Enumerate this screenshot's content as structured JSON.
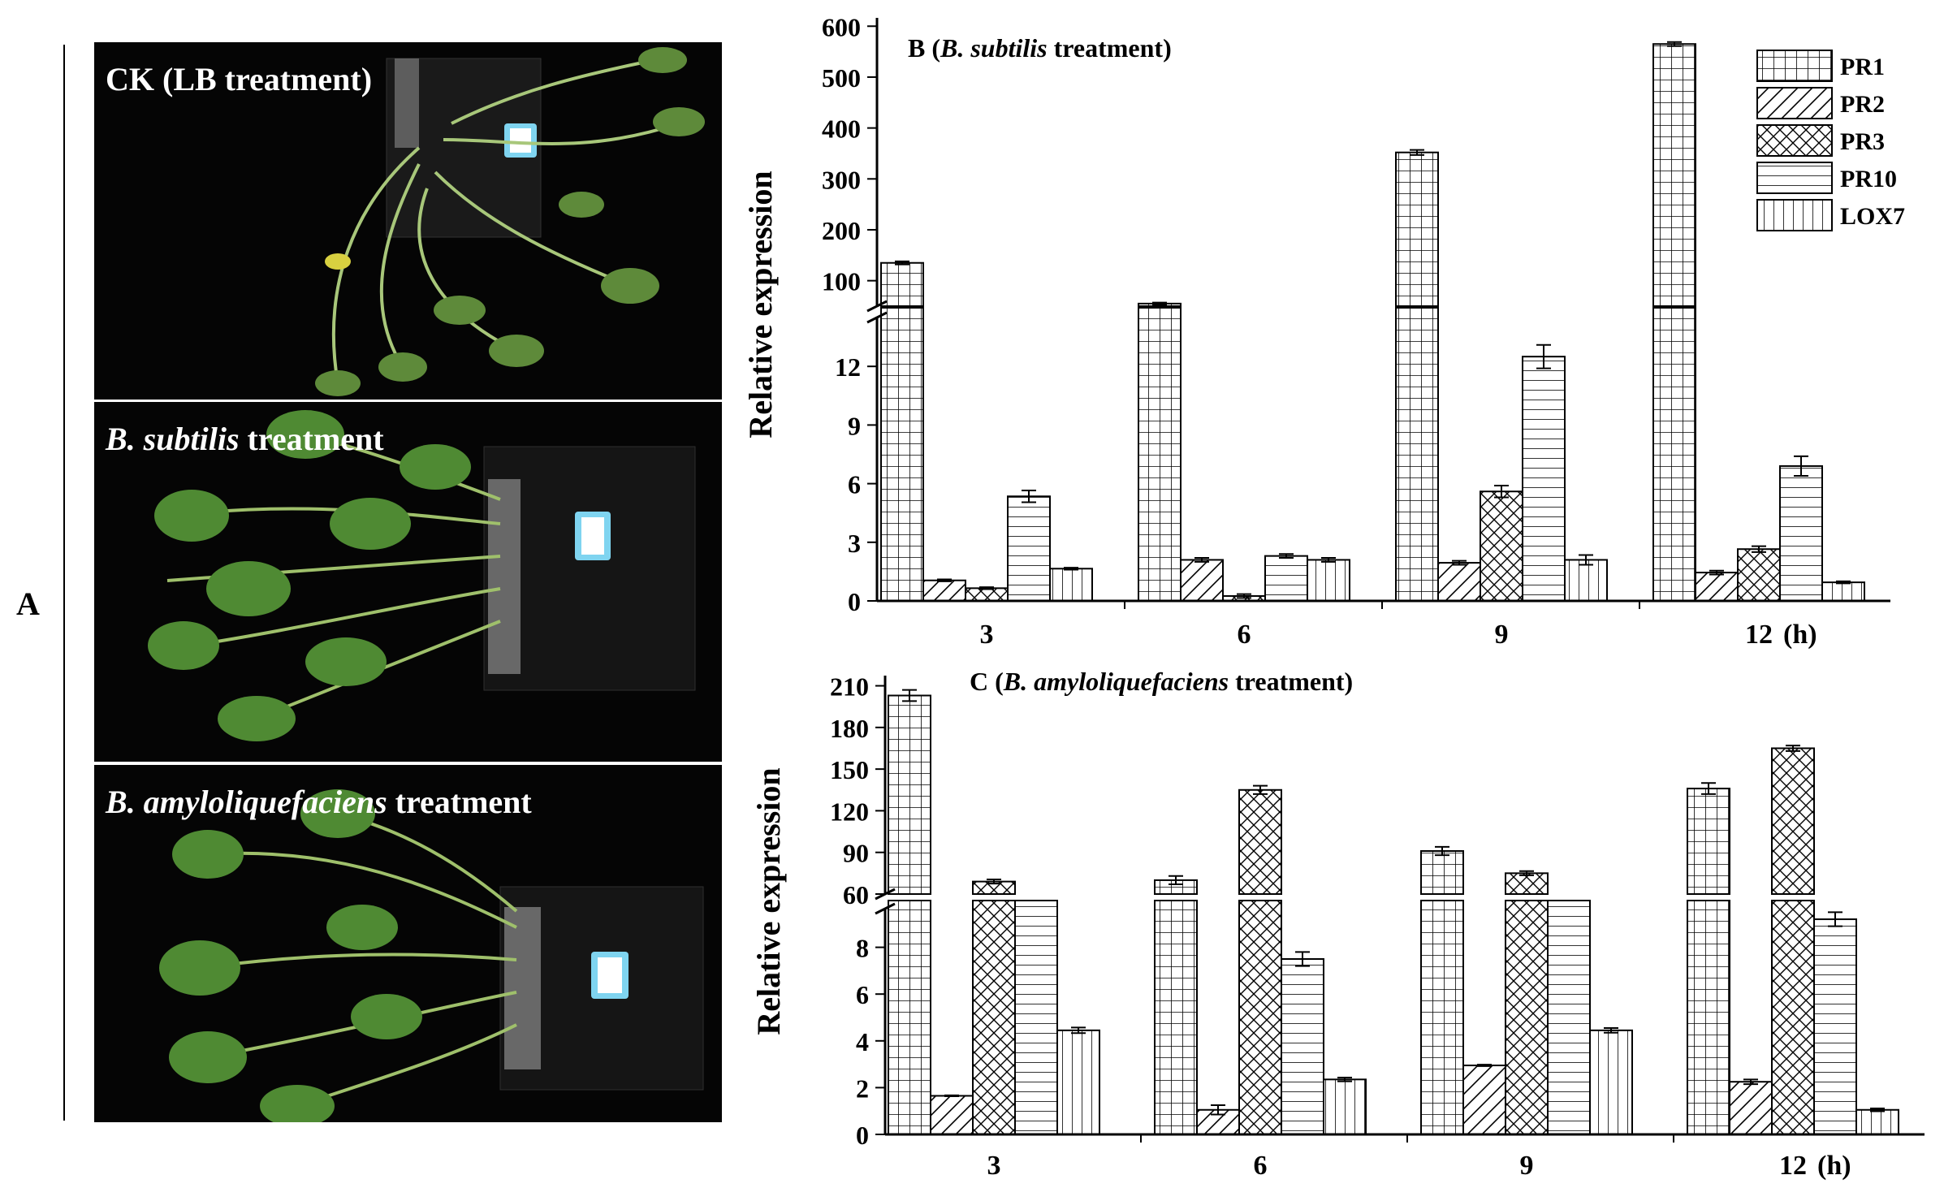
{
  "panel_a": {
    "letter": "A",
    "photos": [
      {
        "label": "CK (LB treatment)",
        "label_parts": [
          {
            "t": "CK (LB treatment)",
            "i": false
          }
        ]
      },
      {
        "label": "B. subtilis treatment",
        "label_parts": [
          {
            "t": "B. subtilis",
            "i": true
          },
          {
            "t": " treatment",
            "i": false
          }
        ]
      },
      {
        "label": "B. amyloliquefaciens treatment",
        "label_parts": [
          {
            "t": "B. amyloliquefaciens",
            "i": true
          },
          {
            "t": " treatment",
            "i": false
          }
        ]
      }
    ]
  },
  "chart_data": [
    {
      "type": "bar",
      "title": "B (B. subtilis treatment)",
      "title_parts": [
        {
          "t": "B (",
          "i": false
        },
        {
          "t": "B. subtilis",
          "i": true
        },
        {
          "t": " treatment)",
          "i": false
        }
      ],
      "ylabel": "Relative expression",
      "xunit": "(h)",
      "categories": [
        "3",
        "6",
        "9",
        "12"
      ],
      "y_break": {
        "lower": [
          0,
          15
        ],
        "upper": [
          50,
          610
        ]
      },
      "yticks_lower": [
        0,
        3,
        6,
        9,
        12
      ],
      "yticks_upper": [
        100,
        200,
        300,
        400,
        500,
        600
      ],
      "legend_position": "top-right",
      "series": [
        {
          "name": "PR1",
          "pattern": "grid",
          "values": [
            135,
            55,
            352,
            565
          ],
          "errors": [
            3,
            2,
            5,
            4
          ]
        },
        {
          "name": "PR2",
          "pattern": "diag",
          "values": [
            1.05,
            2.1,
            1.95,
            1.45
          ],
          "errors": [
            0.05,
            0.1,
            0.1,
            0.1
          ]
        },
        {
          "name": "PR3",
          "pattern": "cross",
          "values": [
            0.65,
            0.25,
            5.6,
            2.65
          ],
          "errors": [
            0.05,
            0.1,
            0.3,
            0.15
          ]
        },
        {
          "name": "PR10",
          "pattern": "hlines",
          "values": [
            5.35,
            2.3,
            12.5,
            6.9
          ],
          "errors": [
            0.3,
            0.1,
            0.6,
            0.5
          ]
        },
        {
          "name": "LOX7",
          "pattern": "vlines",
          "values": [
            1.65,
            2.1,
            2.1,
            0.95
          ],
          "errors": [
            0.05,
            0.1,
            0.25,
            0.05
          ]
        }
      ]
    },
    {
      "type": "bar",
      "title": "C (B. amyloliquefaciens treatment)",
      "title_parts": [
        {
          "t": "C (",
          "i": false
        },
        {
          "t": "B. amyloliquefaciens",
          "i": true
        },
        {
          "t": " treatment)",
          "i": false
        }
      ],
      "ylabel": "Relative expression",
      "xunit": "(h)",
      "categories": [
        "3",
        "6",
        "9",
        "12"
      ],
      "y_break": {
        "lower": [
          0,
          10
        ],
        "upper": [
          60,
          215
        ]
      },
      "yticks_lower": [
        0,
        2,
        4,
        6,
        8
      ],
      "yticks_upper": [
        60,
        90,
        120,
        150,
        180,
        210
      ],
      "series": [
        {
          "name": "PR1",
          "pattern": "grid",
          "values": [
            203,
            70,
            91,
            136
          ],
          "errors": [
            4,
            3,
            3,
            4
          ]
        },
        {
          "name": "PR2",
          "pattern": "diag",
          "values": [
            1.65,
            1.05,
            2.95,
            2.25
          ],
          "errors": [
            0.02,
            0.2,
            0.03,
            0.1
          ]
        },
        {
          "name": "PR3",
          "pattern": "cross",
          "values": [
            69,
            135,
            75,
            165
          ],
          "errors": [
            1.5,
            3,
            1.5,
            2
          ]
        },
        {
          "name": "PR10",
          "pattern": "hlines",
          "values": [
            10,
            7.5,
            10,
            9.2
          ],
          "errors": [
            0,
            0.3,
            0,
            0.3
          ]
        },
        {
          "name": "LOX7",
          "pattern": "vlines",
          "values": [
            4.45,
            2.35,
            4.45,
            1.05
          ],
          "errors": [
            0.12,
            0.08,
            0.1,
            0.06
          ]
        }
      ]
    }
  ]
}
